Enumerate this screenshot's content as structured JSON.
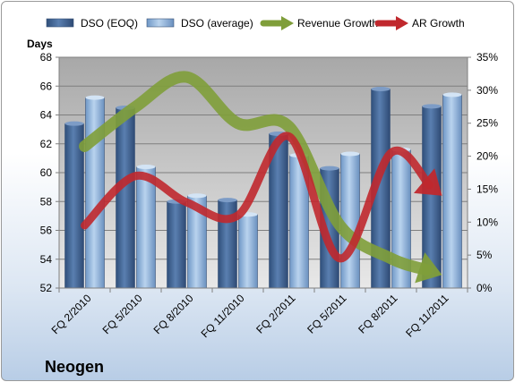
{
  "chart_data": {
    "type": "bar",
    "company": "Neogen",
    "y_left_label": "Days",
    "y_left_lim": [
      52,
      68
    ],
    "y_left_ticks": [
      "52",
      "54",
      "56",
      "58",
      "60",
      "62",
      "64",
      "66",
      "68"
    ],
    "y_right_lim": [
      0,
      35
    ],
    "y_right_ticks": [
      "0%",
      "5%",
      "10%",
      "15%",
      "20%",
      "25%",
      "30%",
      "35%"
    ],
    "categories": [
      "FQ 2/2010",
      "FQ 5/2010",
      "FQ 8/2010",
      "FQ 11/2010",
      "FQ 2/2011",
      "FQ 5/2011",
      "FQ 8/2011",
      "FQ 11/2011"
    ],
    "series": [
      {
        "name": "DSO (EOQ)",
        "kind": "bar",
        "color": "#4a6c9b",
        "values": [
          63.4,
          64.5,
          58.0,
          58.1,
          62.7,
          60.3,
          65.8,
          64.6
        ]
      },
      {
        "name": "DSO (average)",
        "kind": "bar",
        "color": "#8fb3d9",
        "values": [
          65.2,
          60.4,
          58.4,
          57.1,
          61.2,
          61.3,
          61.6,
          65.4
        ]
      },
      {
        "name": "Revenue Growth",
        "kind": "line",
        "axis": "right",
        "color": "#7f9e3a",
        "values": [
          21.5,
          27.5,
          32,
          25,
          24.5,
          9.5,
          4.5,
          2
        ]
      },
      {
        "name": "AR Growth",
        "kind": "line",
        "axis": "right",
        "color": "#c0282d",
        "values": [
          9.5,
          17,
          13,
          11,
          23,
          4.5,
          20.5,
          14
        ]
      }
    ],
    "grid": true,
    "legend_position": "top"
  }
}
